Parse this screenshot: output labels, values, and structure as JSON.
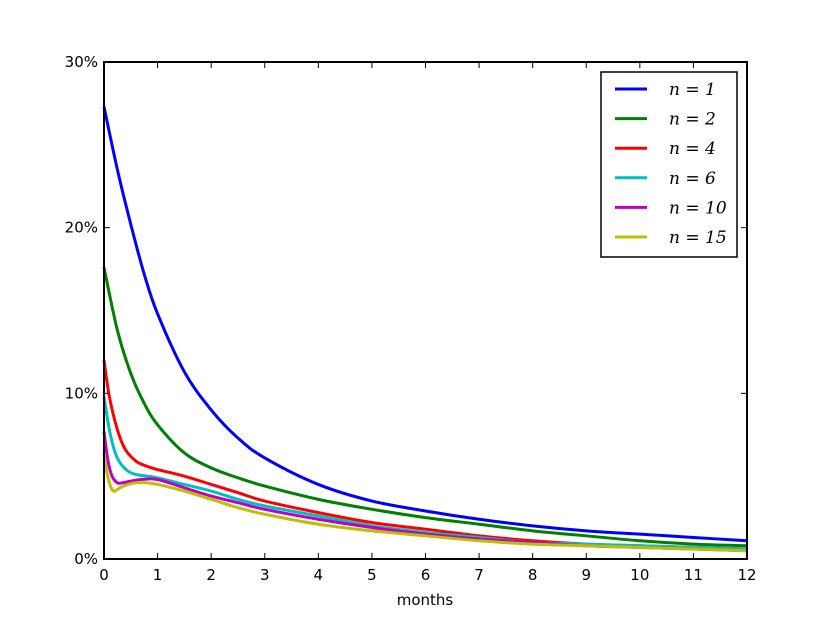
{
  "chart_data": {
    "type": "line",
    "title": "",
    "xlabel": "months",
    "ylabel": "",
    "xlim": [
      0,
      12
    ],
    "ylim": [
      0,
      30
    ],
    "xticks": [
      "0",
      "1",
      "2",
      "3",
      "4",
      "5",
      "6",
      "7",
      "8",
      "9",
      "10",
      "11",
      "12"
    ],
    "yticks": [
      "0%",
      "10%",
      "20%",
      "30%"
    ],
    "grid": false,
    "legend_position": "top-right",
    "series": [
      {
        "name": "n = 1",
        "color": "#0000ff",
        "x": [
          0,
          0.25,
          0.5,
          0.75,
          1,
          1.5,
          2,
          2.5,
          3,
          4,
          5,
          6,
          7,
          8,
          9,
          10,
          11,
          12
        ],
        "y": [
          27.3,
          23.5,
          20.2,
          17.2,
          14.8,
          11.3,
          9.0,
          7.3,
          6.1,
          4.5,
          3.5,
          2.9,
          2.4,
          2.0,
          1.7,
          1.5,
          1.3,
          1.1
        ]
      },
      {
        "name": "n = 2",
        "color": "#008000",
        "x": [
          0,
          0.25,
          0.5,
          0.75,
          1,
          1.5,
          2,
          2.5,
          3,
          4,
          5,
          6,
          7,
          8,
          9,
          10,
          11,
          12
        ],
        "y": [
          17.6,
          13.8,
          11.2,
          9.4,
          8.1,
          6.4,
          5.5,
          4.9,
          4.4,
          3.6,
          3.0,
          2.5,
          2.1,
          1.7,
          1.4,
          1.1,
          0.9,
          0.8
        ]
      },
      {
        "name": "n = 4",
        "color": "#ff0000",
        "x": [
          0,
          0.1,
          0.25,
          0.4,
          0.6,
          0.8,
          1,
          1.5,
          2,
          2.5,
          3,
          4,
          5,
          6,
          7,
          8,
          9,
          10,
          11,
          12
        ],
        "y": [
          12.0,
          9.8,
          7.8,
          6.6,
          5.9,
          5.6,
          5.4,
          5.0,
          4.5,
          4.0,
          3.5,
          2.8,
          2.2,
          1.8,
          1.4,
          1.1,
          0.9,
          0.8,
          0.7,
          0.6
        ]
      },
      {
        "name": "n = 6",
        "color": "#00bfbf",
        "x": [
          0,
          0.1,
          0.2,
          0.3,
          0.45,
          0.6,
          0.8,
          1,
          1.5,
          2,
          2.5,
          3,
          4,
          5,
          6,
          7,
          8,
          9,
          10,
          11,
          12
        ],
        "y": [
          9.8,
          7.8,
          6.5,
          5.8,
          5.3,
          5.1,
          5.0,
          4.9,
          4.5,
          4.1,
          3.6,
          3.2,
          2.6,
          2.0,
          1.6,
          1.3,
          1.0,
          0.9,
          0.8,
          0.7,
          0.6
        ]
      },
      {
        "name": "n = 10",
        "color": "#bf00bf",
        "x": [
          0,
          0.07,
          0.15,
          0.25,
          0.35,
          0.5,
          0.7,
          1,
          1.5,
          2,
          2.5,
          3,
          4,
          5,
          6,
          7,
          8,
          9,
          10,
          11,
          12
        ],
        "y": [
          7.7,
          6.0,
          5.0,
          4.6,
          4.6,
          4.7,
          4.8,
          4.8,
          4.3,
          3.8,
          3.4,
          3.0,
          2.4,
          1.9,
          1.5,
          1.2,
          1.0,
          0.8,
          0.7,
          0.6,
          0.5
        ]
      },
      {
        "name": "n = 15",
        "color": "#bfbf00",
        "x": [
          0,
          0.05,
          0.1,
          0.15,
          0.2,
          0.3,
          0.45,
          0.6,
          0.8,
          1,
          1.5,
          2,
          2.5,
          3,
          4,
          5,
          6,
          7,
          8,
          9,
          10,
          11,
          12
        ],
        "y": [
          6.4,
          5.3,
          4.6,
          4.2,
          4.1,
          4.3,
          4.5,
          4.6,
          4.6,
          4.5,
          4.1,
          3.6,
          3.1,
          2.7,
          2.1,
          1.7,
          1.4,
          1.1,
          0.9,
          0.8,
          0.7,
          0.6,
          0.5
        ]
      }
    ]
  }
}
